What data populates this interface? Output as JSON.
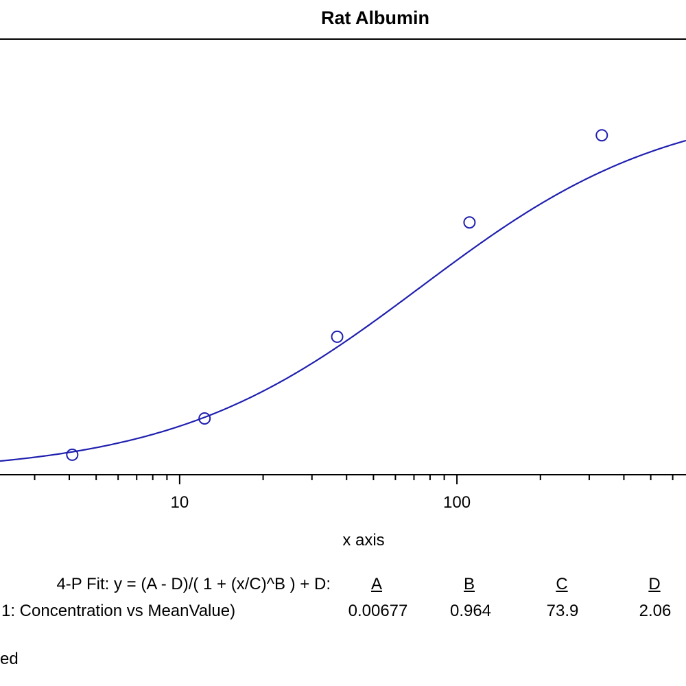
{
  "chart_data": {
    "type": "scatter",
    "title": "Rat Albumin",
    "xlabel": "x axis",
    "x_scale": "log",
    "x_ticks": [
      10,
      100
    ],
    "x_tick_labels": [
      "10",
      "100"
    ],
    "xlim": [
      2.25,
      670
    ],
    "ylim": [
      0,
      2.4
    ],
    "grid": false,
    "series": [
      {
        "marker": "circle",
        "color": "#1f1fb0",
        "x": [
          4.1,
          12.3,
          37,
          111,
          333
        ],
        "y": [
          0.11,
          0.31,
          0.76,
          1.39,
          1.87
        ]
      }
    ],
    "fit": {
      "model": "4-P Fit",
      "color": "#1f1fb0",
      "A": 0.00677,
      "B": 0.964,
      "C": 73.9,
      "D": 2.06
    }
  },
  "fit_table": {
    "equation": "4-P Fit: y = (A - D)/( 1 + (x/C)^B ) + D:",
    "headers": [
      "A",
      "B",
      "C",
      "D"
    ],
    "row_label": "1: Concentration vs MeanValue)",
    "values": [
      "0.00677",
      "0.964",
      "73.9",
      "2.06"
    ],
    "footer": "ed"
  }
}
